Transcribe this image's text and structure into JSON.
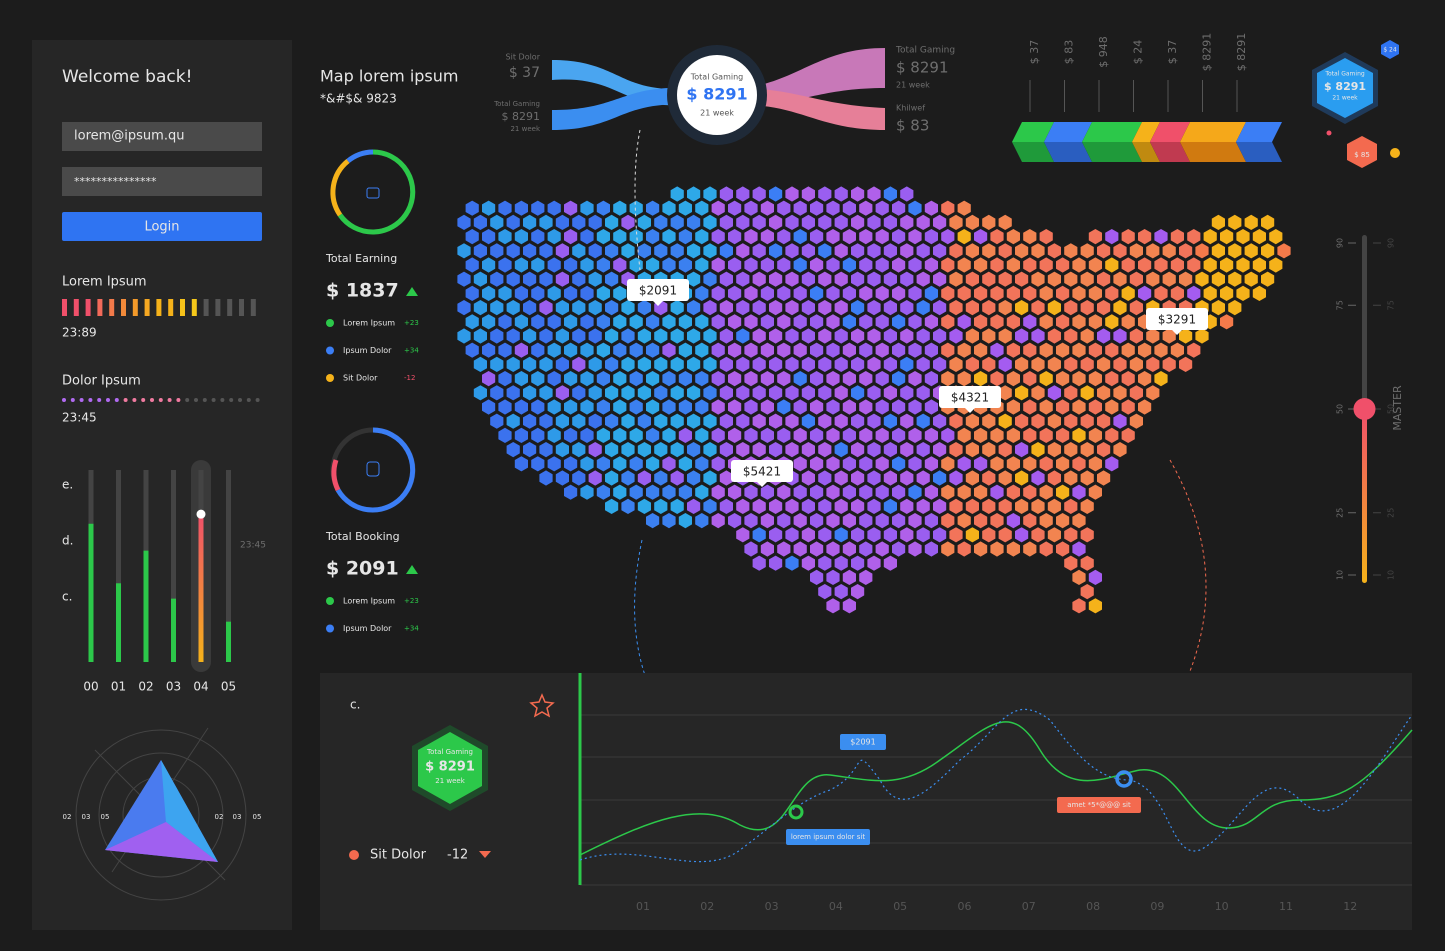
{
  "login": {
    "title": "Welcome back!",
    "email": "lorem@ipsum.qu",
    "password": "***************",
    "button": "Login"
  },
  "meter1": {
    "label": "Lorem Ipsum",
    "time": "23:89"
  },
  "meter2": {
    "label": "Dolor Ipsum",
    "time": "23:45"
  },
  "bars": {
    "rows": [
      "e.",
      "d.",
      "c."
    ],
    "categories": [
      "00",
      "01",
      "02",
      "03",
      "04",
      "05"
    ],
    "values": [
      72,
      41,
      58,
      33,
      77,
      21
    ],
    "ylim": [
      0,
      100
    ],
    "marker": "23:45"
  },
  "radar": {
    "labels": [
      "02",
      "03",
      "05",
      "02",
      "03",
      "05"
    ]
  },
  "map": {
    "title": "Map lorem ipsum",
    "subtitle": "*&#$& 9823",
    "pins": [
      "$2091",
      "$3291",
      "$4321",
      "$5421"
    ]
  },
  "earning": {
    "title": "Total Earning",
    "value": "$ 1837",
    "legend": [
      [
        "Lorem Ipsum",
        "+23"
      ],
      [
        "Ipsum Dolor",
        "+34"
      ],
      [
        "Sit Dolor",
        "-12"
      ]
    ]
  },
  "booking": {
    "title": "Total Booking",
    "value": "$ 2091",
    "legend": [
      [
        "Lorem Ipsum",
        "+23"
      ],
      [
        "Ipsum Dolor",
        "+34"
      ]
    ]
  },
  "sankey": {
    "left": [
      {
        "name": "Sit Dolor",
        "value": "$ 37"
      },
      {
        "name": "Total Gaming",
        "value": "$ 8291",
        "note": "21 week"
      }
    ],
    "center": {
      "name": "Total Gaming",
      "value": "$ 8291",
      "note": "21 week"
    },
    "right": [
      {
        "name": "Total Gaming",
        "value": "$ 8291",
        "note": "21 week"
      },
      {
        "name": "Khilwef",
        "value": "$ 83"
      }
    ]
  },
  "columns": [
    "$ 37",
    "$ 83",
    "$ 948",
    "$ 24",
    "$ 37",
    "$ 8291",
    "$ 8291"
  ],
  "badges": {
    "small": "$ 24",
    "main": {
      "name": "Total Gaming",
      "value": "$ 8291",
      "note": "21 week"
    },
    "orange": "$ 85"
  },
  "slider": {
    "ticks": [
      90,
      75,
      50,
      25,
      10
    ],
    "value": 50,
    "label": "MASTER"
  },
  "bottom": {
    "label": "c.",
    "badge": {
      "name": "Total Gaming",
      "value": "$ 8291",
      "note": "21 week"
    },
    "legend": "Sit Dolor",
    "change": "-12",
    "tips": [
      "$2091",
      "lorem ipsum dolor sit",
      "amet *5*@@@ sit"
    ],
    "months": [
      "01",
      "02",
      "03",
      "04",
      "05",
      "06",
      "07",
      "08",
      "09",
      "10",
      "11",
      "12"
    ]
  }
}
